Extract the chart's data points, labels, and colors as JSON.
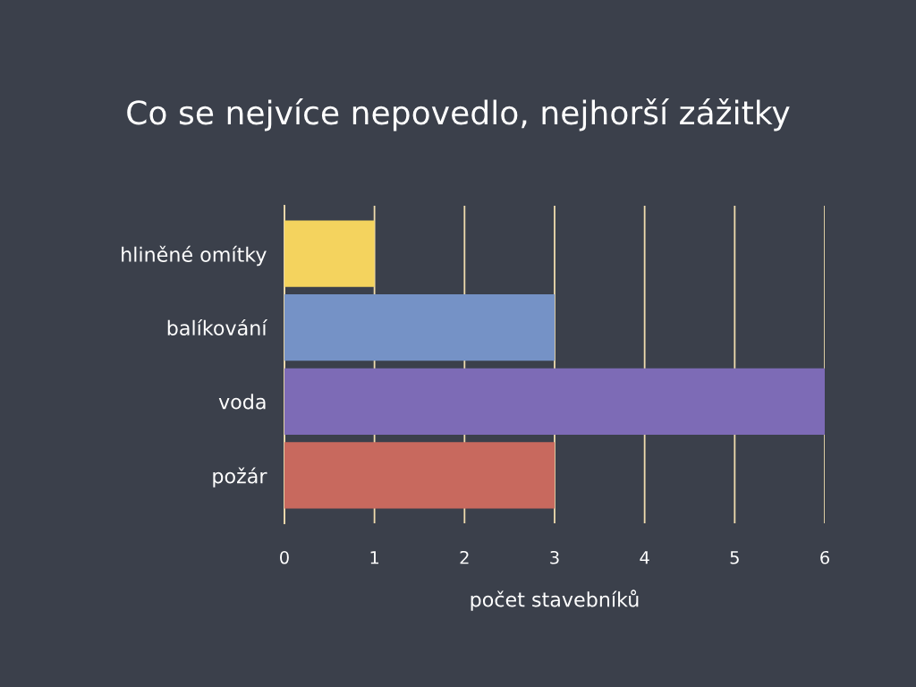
{
  "chart_data": {
    "type": "bar",
    "orientation": "horizontal",
    "title": "Co se nejvíce nepovedlo, nejhorší zážitky",
    "xlabel": "počet stavebníků",
    "categories": [
      "hliněné omítky",
      "balíkování",
      "voda",
      "požár"
    ],
    "values": [
      1,
      3,
      6,
      3
    ],
    "colors": [
      "#f4d35e",
      "#7592c6",
      "#7d6bb6",
      "#c8695e"
    ],
    "xlim": [
      0,
      6
    ],
    "xticks": [
      0,
      1,
      2,
      3,
      4,
      5,
      6
    ],
    "grid": "x"
  }
}
